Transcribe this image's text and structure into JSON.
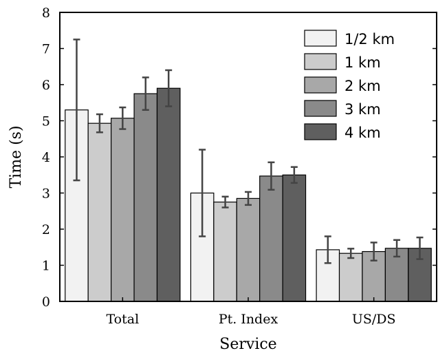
{
  "chart_data": {
    "type": "bar",
    "xlabel": "Service",
    "ylabel": "Time (s)",
    "ylim": [
      0,
      8
    ],
    "yticks": [
      "0",
      "1",
      "2",
      "3",
      "4",
      "5",
      "6",
      "7",
      "8"
    ],
    "categories": [
      "Total",
      "Pt. Index",
      "US/DS"
    ],
    "grid": false,
    "legend_position": "top-right",
    "series": [
      {
        "name": "1/2 km",
        "color": "#f2f2f2",
        "values": [
          5.3,
          3.0,
          1.43
        ],
        "errors": [
          1.95,
          1.2,
          0.37
        ]
      },
      {
        "name": "1 km",
        "color": "#cccccc",
        "values": [
          4.93,
          2.75,
          1.33
        ],
        "errors": [
          0.25,
          0.15,
          0.13
        ]
      },
      {
        "name": "2 km",
        "color": "#a8a8a8",
        "values": [
          5.07,
          2.85,
          1.38
        ],
        "errors": [
          0.3,
          0.18,
          0.25
        ]
      },
      {
        "name": "3 km",
        "color": "#8a8a8a",
        "values": [
          5.75,
          3.47,
          1.47
        ],
        "errors": [
          0.45,
          0.38,
          0.23
        ]
      },
      {
        "name": "4 km",
        "color": "#5f5f5f",
        "values": [
          5.9,
          3.5,
          1.47
        ],
        "errors": [
          0.5,
          0.22,
          0.3
        ]
      }
    ]
  }
}
